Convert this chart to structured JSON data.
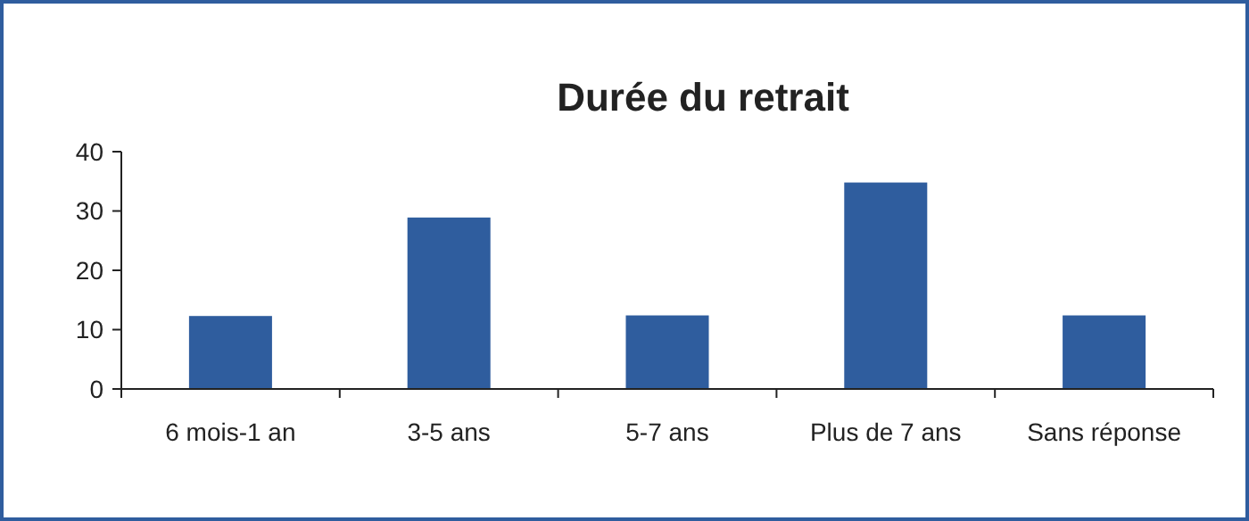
{
  "chart_data": {
    "type": "bar",
    "title": "Durée du retrait",
    "categories": [
      "6 mois-1 an",
      "3-5 ans",
      "5-7 ans",
      "Plus de 7 ans",
      "Sans réponse"
    ],
    "values": [
      12.3,
      28.9,
      12.4,
      34.8,
      12.4
    ],
    "color": "#2f5d9e",
    "ylim": [
      0,
      40
    ],
    "yticks": [
      0,
      10,
      20,
      30,
      40
    ]
  }
}
